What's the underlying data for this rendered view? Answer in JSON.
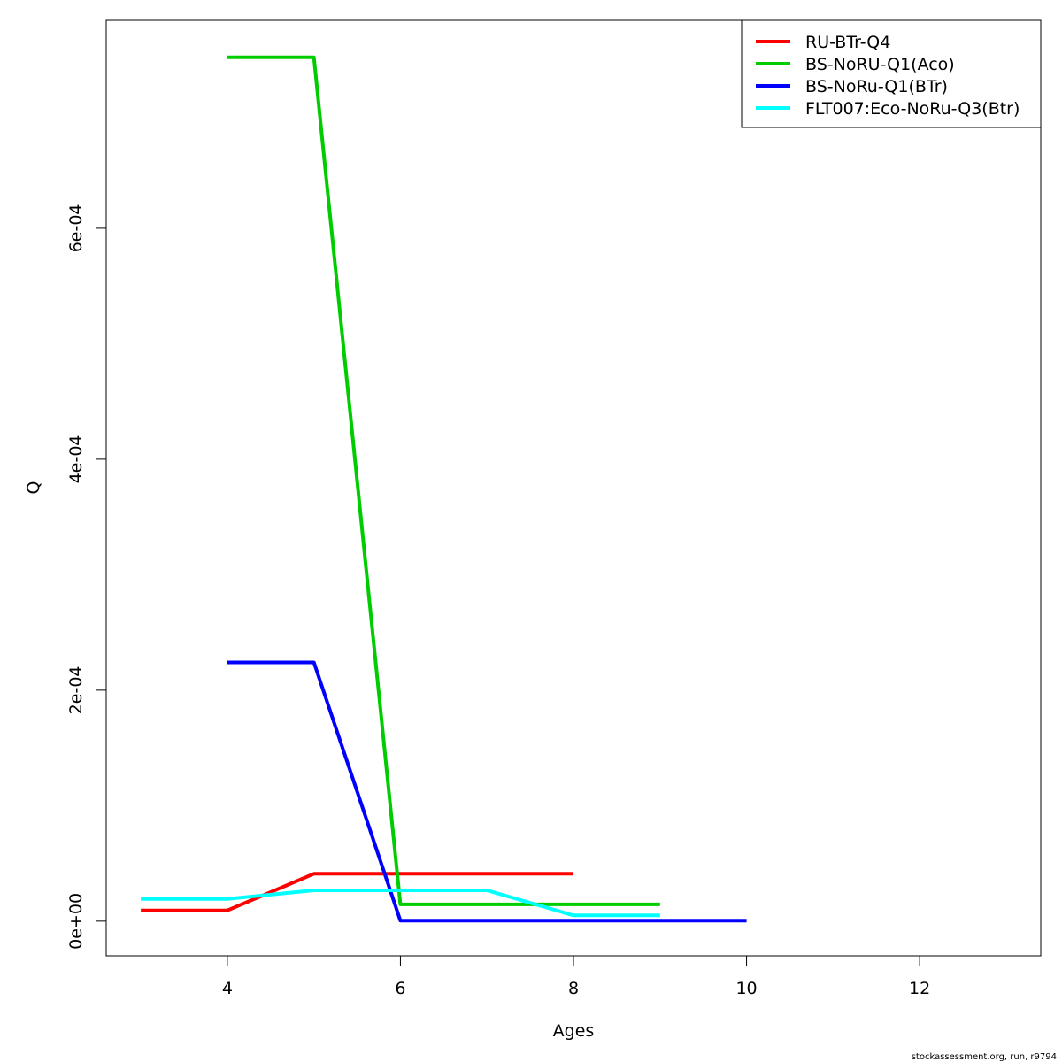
{
  "chart_data": {
    "type": "line",
    "xlabel": "Ages",
    "ylabel": "Q",
    "xlim": [
      2.6,
      13.4
    ],
    "ylim": [
      -3e-05,
      0.00078
    ],
    "x_ticks": [
      4,
      6,
      8,
      10,
      12
    ],
    "x_tick_labels": [
      "4",
      "6",
      "8",
      "10",
      "12"
    ],
    "y_ticks": [
      0,
      0.0002,
      0.0004,
      0.0006
    ],
    "y_tick_labels": [
      "0e+00",
      "2e-04",
      "4e-04",
      "6e-04"
    ],
    "grid": false,
    "legend_position": "top-right",
    "series": [
      {
        "name": "RU-BTr-Q4",
        "color": "#ff0000",
        "x": [
          3,
          4,
          5,
          6,
          7,
          8
        ],
        "y": [
          9.3e-06,
          9.3e-06,
          4.1e-05,
          4.1e-05,
          4.1e-05,
          4.1e-05
        ]
      },
      {
        "name": "BS-NoRU-Q1(Aco)",
        "color": "#00cd00",
        "x": [
          4,
          5,
          6,
          7,
          8,
          9
        ],
        "y": [
          0.000748,
          0.000748,
          1.45e-05,
          1.45e-05,
          1.45e-05,
          1.45e-05
        ]
      },
      {
        "name": "BS-NoRu-Q1(BTr)",
        "color": "#0000ff",
        "x": [
          4,
          5,
          6,
          7,
          8,
          9,
          10
        ],
        "y": [
          0.000224,
          0.000224,
          5e-07,
          5e-07,
          5e-07,
          5e-07,
          5e-07
        ]
      },
      {
        "name": "FLT007:Eco-NoRu-Q3(Btr)",
        "color": "#00ffff",
        "x": [
          3,
          4,
          5,
          6,
          7,
          8,
          9
        ],
        "y": [
          1.93e-05,
          1.93e-05,
          2.67e-05,
          2.67e-05,
          2.67e-05,
          5e-06,
          5e-06
        ]
      }
    ]
  },
  "footer": "stockassessment.org, run, r9794"
}
